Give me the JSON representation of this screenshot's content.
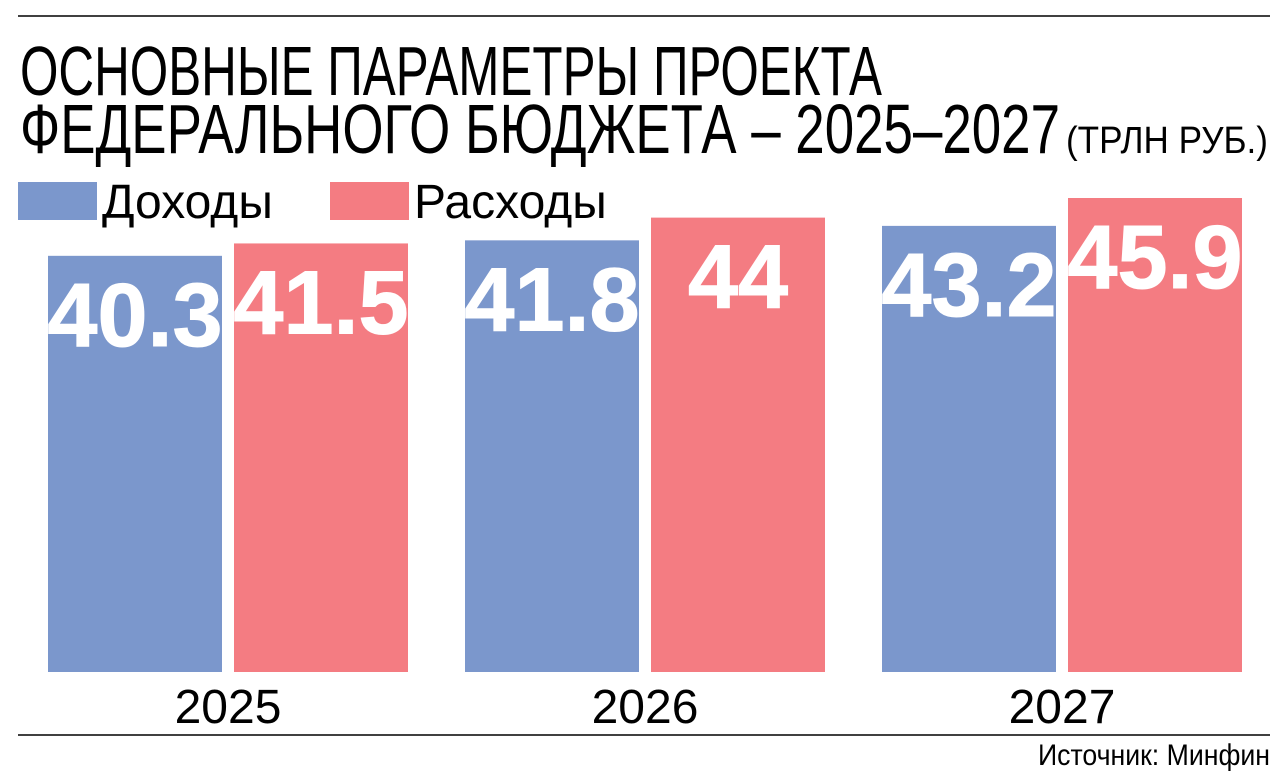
{
  "chart_data": {
    "type": "bar",
    "title": [
      "ОСНОВНЫЕ ПАРАМЕТРЫ ПРОЕКТА",
      "ФЕДЕРАЛЬНОГО БЮДЖЕТА – 2025–2027"
    ],
    "unit": "(ТРЛН РУБ.)",
    "categories": [
      "2025",
      "2026",
      "2027"
    ],
    "series": [
      {
        "name": "Доходы",
        "color": "#7b97cc",
        "values": [
          40.3,
          41.8,
          43.2
        ]
      },
      {
        "name": "Расходы",
        "color": "#f47c82",
        "values": [
          41.5,
          44,
          45.9
        ]
      }
    ],
    "source": "Источник: Минфин"
  }
}
